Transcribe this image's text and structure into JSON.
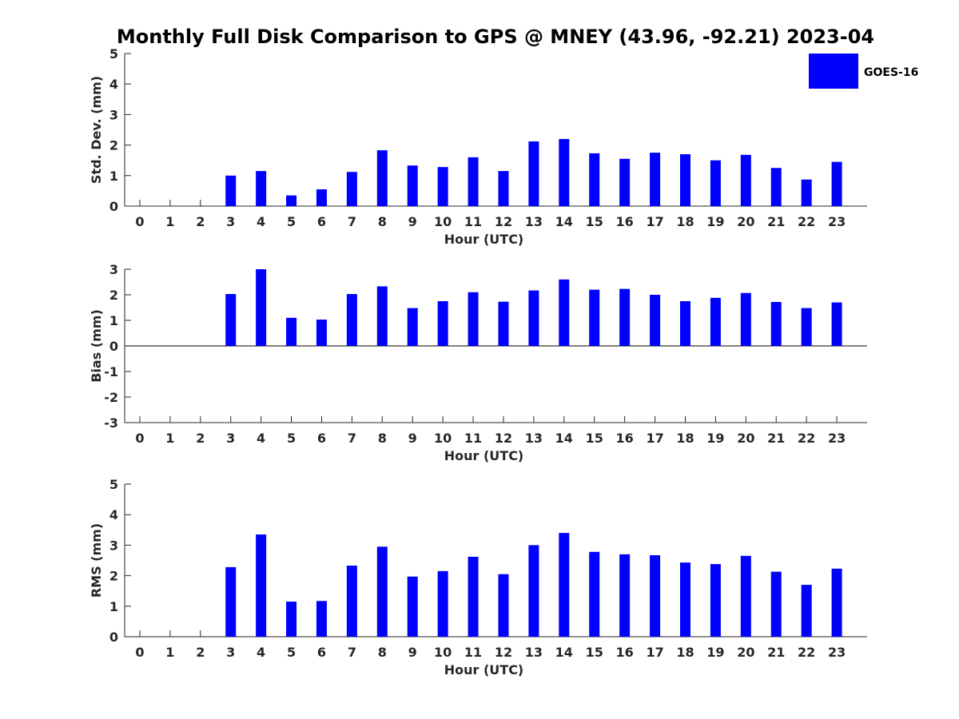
{
  "title": "Monthly Full Disk Comparison to GPS @ MNEY (43.96, -92.21) 2023-04",
  "legend": {
    "label": "GOES-16",
    "color": "#0000ff",
    "placement": "top-right"
  },
  "chart_data": [
    {
      "type": "bar",
      "ylabel": "Std. Dev. (mm)",
      "xlabel": "Hour (UTC)",
      "ylim": [
        0,
        5
      ],
      "yticks": [
        0,
        1,
        2,
        3,
        4,
        5
      ],
      "categories": [
        "0",
        "1",
        "2",
        "3",
        "4",
        "5",
        "6",
        "7",
        "8",
        "9",
        "10",
        "11",
        "12",
        "13",
        "14",
        "15",
        "16",
        "17",
        "18",
        "19",
        "20",
        "21",
        "22",
        "23"
      ],
      "series": [
        {
          "values": [
            null,
            null,
            null,
            1.0,
            1.15,
            0.35,
            0.55,
            1.12,
            1.83,
            1.33,
            1.28,
            1.6,
            1.15,
            2.12,
            2.2,
            1.73,
            1.55,
            1.75,
            1.7,
            1.5,
            1.68,
            1.25,
            0.87,
            1.45
          ]
        }
      ]
    },
    {
      "type": "bar",
      "ylabel": "Bias (mm)",
      "xlabel": "Hour (UTC)",
      "ylim": [
        -3,
        3
      ],
      "yticks": [
        -3,
        -2,
        -1,
        0,
        1,
        2,
        3
      ],
      "categories": [
        "0",
        "1",
        "2",
        "3",
        "4",
        "5",
        "6",
        "7",
        "8",
        "9",
        "10",
        "11",
        "12",
        "13",
        "14",
        "15",
        "16",
        "17",
        "18",
        "19",
        "20",
        "21",
        "22",
        "23"
      ],
      "series": [
        {
          "values": [
            null,
            null,
            null,
            2.03,
            3.0,
            1.1,
            1.03,
            2.03,
            2.33,
            1.48,
            1.75,
            2.1,
            1.73,
            2.17,
            2.6,
            2.2,
            2.23,
            2.0,
            1.75,
            1.88,
            2.07,
            1.72,
            1.48,
            1.7
          ]
        }
      ]
    },
    {
      "type": "bar",
      "ylabel": "RMS (mm)",
      "xlabel": "Hour (UTC)",
      "ylim": [
        0,
        5
      ],
      "yticks": [
        0,
        1,
        2,
        3,
        4,
        5
      ],
      "categories": [
        "0",
        "1",
        "2",
        "3",
        "4",
        "5",
        "6",
        "7",
        "8",
        "9",
        "10",
        "11",
        "12",
        "13",
        "14",
        "15",
        "16",
        "17",
        "18",
        "19",
        "20",
        "21",
        "22",
        "23"
      ],
      "series": [
        {
          "values": [
            null,
            null,
            null,
            2.28,
            3.35,
            1.15,
            1.17,
            2.33,
            2.95,
            1.97,
            2.15,
            2.62,
            2.05,
            3.0,
            3.4,
            2.78,
            2.7,
            2.67,
            2.43,
            2.38,
            2.65,
            2.13,
            1.7,
            2.23
          ]
        }
      ]
    }
  ]
}
